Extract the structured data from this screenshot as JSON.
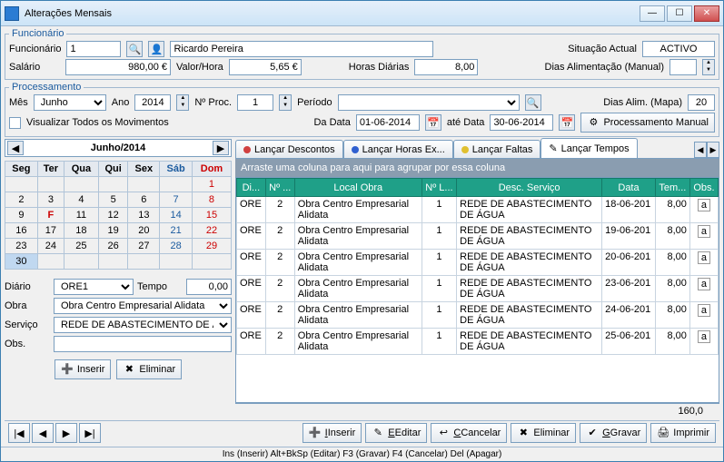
{
  "window": {
    "title": "Alterações Mensais"
  },
  "funcionario": {
    "legend": "Funcionário",
    "label_func": "Funcionário",
    "id": "1",
    "nome": "Ricardo Pereira",
    "label_situacao": "Situação Actual",
    "situacao": "ACTIVO",
    "label_salario": "Salário",
    "salario": "980,00 €",
    "label_valorhora": "Valor/Hora",
    "valorhora": "5,65 €",
    "label_horasdiarias": "Horas Diárias",
    "horasdiarias": "8,00",
    "label_diasalim": "Dias Alimentação (Manual)",
    "diasalim": ""
  },
  "processamento": {
    "legend": "Processamento",
    "label_mes": "Mês",
    "mes": "Junho",
    "label_ano": "Ano",
    "ano": "2014",
    "label_nproc": "Nº Proc.",
    "nproc": "1",
    "label_periodo": "Período",
    "periodo": "",
    "label_diasmapa": "Dias Alim. (Mapa)",
    "diasmapa": "20",
    "label_visualizar": "Visualizar Todos os Movimentos",
    "label_dadata": "Da Data",
    "dadata": "01-06-2014",
    "label_atedata": "até Data",
    "atedata": "30-06-2014",
    "btn_procmanual": "Processamento Manual"
  },
  "calendar": {
    "title": "Junho/2014",
    "days": [
      "Seg",
      "Ter",
      "Qua",
      "Qui",
      "Sex",
      "Sáb",
      "Dom"
    ]
  },
  "entryform": {
    "label_diario": "Diário",
    "diario": "ORE1",
    "label_tempo": "Tempo",
    "tempo": "0,00",
    "label_obra": "Obra",
    "obra": "Obra Centro Empresarial Alidata",
    "label_servico": "Serviço",
    "servico": "REDE DE ABASTECIMENTO DE ÁGUA",
    "label_obs": "Obs.",
    "obs": "",
    "btn_inserir": "Inserir",
    "btn_eliminar": "Eliminar"
  },
  "tabs": {
    "t1": "Lançar Descontos",
    "t2": "Lançar Horas Ex...",
    "t3": "Lançar Faltas",
    "t4": "Lançar Tempos",
    "dot1": "#d04040",
    "dot2": "#3060d0",
    "dot3": "#e0c030",
    "tab4_icon": "✎"
  },
  "grid": {
    "grouptext": "Arraste uma coluna para aqui para agrupar por essa coluna",
    "cols": {
      "c1": "Di...",
      "c2": "Nº ...",
      "c3": "Local Obra",
      "c4": "Nº L...",
      "c5": "Desc. Serviço",
      "c6": "Data",
      "c7": "Tem...",
      "c8": "Obs."
    },
    "rows": [
      {
        "c1": "ORE",
        "c2": "2",
        "c3": "Obra Centro Empresarial Alidata",
        "c4": "1",
        "c5": "REDE DE ABASTECIMENTO DE ÁGUA",
        "c6": "18-06-201",
        "c7": "8,00"
      },
      {
        "c1": "ORE",
        "c2": "2",
        "c3": "Obra Centro Empresarial Alidata",
        "c4": "1",
        "c5": "REDE DE ABASTECIMENTO DE ÁGUA",
        "c6": "19-06-201",
        "c7": "8,00"
      },
      {
        "c1": "ORE",
        "c2": "2",
        "c3": "Obra Centro Empresarial Alidata",
        "c4": "1",
        "c5": "REDE DE ABASTECIMENTO DE ÁGUA",
        "c6": "20-06-201",
        "c7": "8,00"
      },
      {
        "c1": "ORE",
        "c2": "2",
        "c3": "Obra Centro Empresarial Alidata",
        "c4": "1",
        "c5": "REDE DE ABASTECIMENTO DE ÁGUA",
        "c6": "23-06-201",
        "c7": "8,00"
      },
      {
        "c1": "ORE",
        "c2": "2",
        "c3": "Obra Centro Empresarial Alidata",
        "c4": "1",
        "c5": "REDE DE ABASTECIMENTO DE ÁGUA",
        "c6": "24-06-201",
        "c7": "8,00"
      },
      {
        "c1": "ORE",
        "c2": "2",
        "c3": "Obra Centro Empresarial Alidata",
        "c4": "1",
        "c5": "REDE DE ABASTECIMENTO DE ÁGUA",
        "c6": "25-06-201",
        "c7": "8,00"
      }
    ],
    "total": "160,0"
  },
  "bottom": {
    "btn_inserir": "Inserir",
    "btn_editar": "Editar",
    "btn_cancelar": "Cancelar",
    "btn_eliminar": "Eliminar",
    "btn_gravar": "Gravar",
    "btn_imprimir": "Imprimir"
  },
  "status": "Ins (Inserir)  Alt+BkSp (Editar)  F3 (Gravar)  F4 (Cancelar) Del (Apagar)",
  "colors": {
    "accent": "#1fa088",
    "headerbg": "#8a9db0"
  }
}
